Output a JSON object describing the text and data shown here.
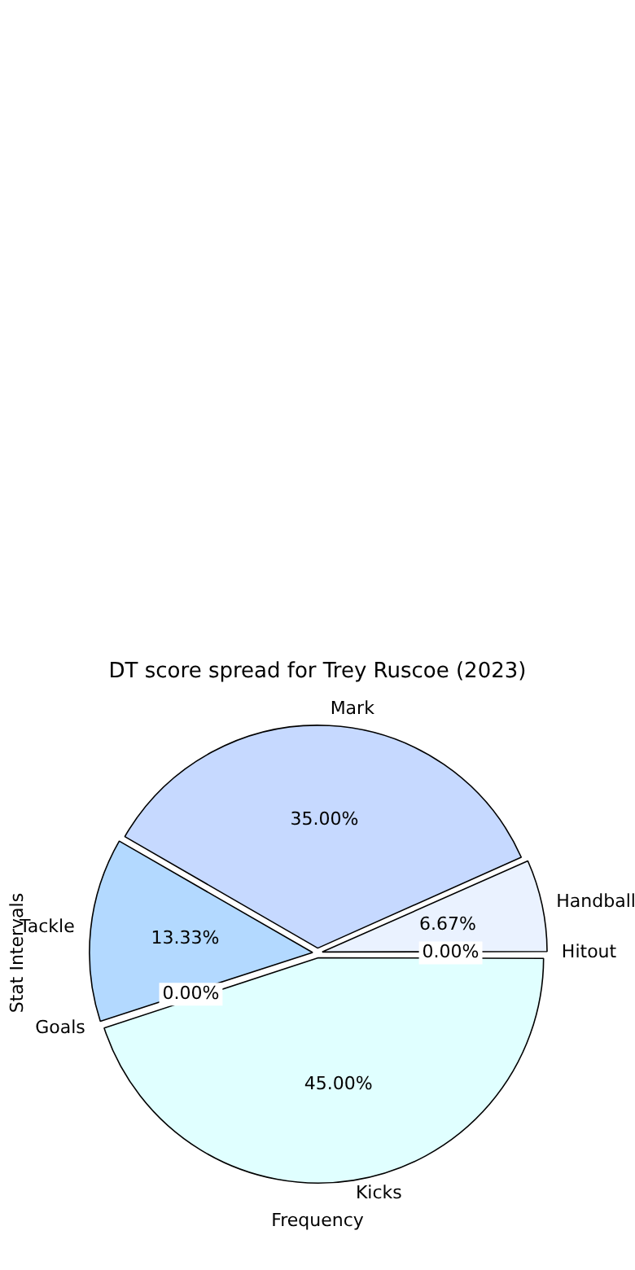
{
  "chart_data": {
    "type": "pie",
    "title": "DT score spread for Trey Ruscoe (2023)",
    "xlabel": "Frequency",
    "ylabel": "Stat Intervals",
    "categories": [
      "Goals",
      "Tackle",
      "Mark",
      "Handball",
      "Hitout",
      "Kicks"
    ],
    "values": [
      0,
      13.33,
      35,
      6.67,
      0,
      45
    ],
    "value_labels": [
      "0.00%",
      "13.33%",
      "35.00%",
      "6.67%",
      "0.00%",
      "45.00%"
    ],
    "colors": [
      "#ffe4e1",
      "#b3d9ff",
      "#c6d9ff",
      "#eaf2ff",
      "#f0f0ff",
      "#e0ffff"
    ],
    "legend": false
  }
}
